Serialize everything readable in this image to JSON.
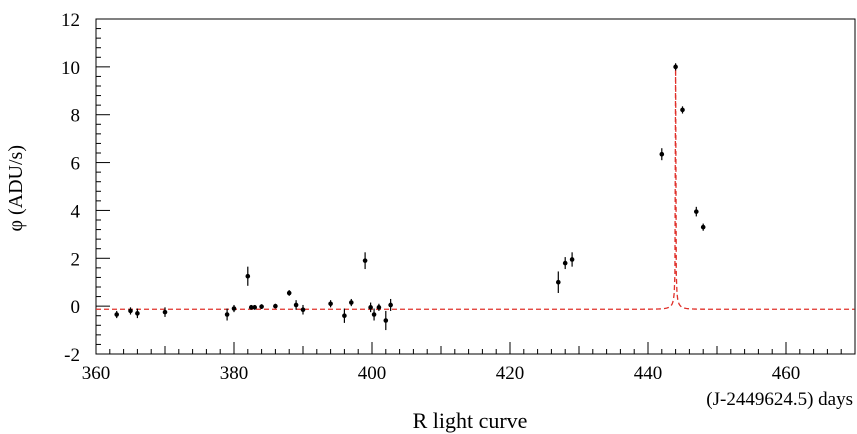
{
  "chart_data": {
    "type": "scatter",
    "title": "",
    "caption": "R light curve",
    "xlabel": "(J-2449624.5) days",
    "ylabel": "φ (ADU/s)",
    "xlim": [
      360,
      470
    ],
    "ylim": [
      -2,
      12
    ],
    "x_ticks": [
      360,
      380,
      400,
      420,
      440,
      460
    ],
    "y_ticks": [
      -2,
      0,
      2,
      4,
      6,
      8,
      10,
      12
    ],
    "x_tick_labels": [
      "360",
      "380",
      "400",
      "420",
      "440",
      "460"
    ],
    "y_tick_labels": [
      "-2",
      "0",
      "2",
      "4",
      "6",
      "8",
      "10",
      "12"
    ],
    "grid": false,
    "legend": "none",
    "series": [
      {
        "kind": "points-with-errorbars",
        "color": "#000000",
        "points": [
          {
            "x": 363.0,
            "y": -0.35,
            "err": 0.15
          },
          {
            "x": 365.0,
            "y": -0.2,
            "err": 0.15
          },
          {
            "x": 366.0,
            "y": -0.3,
            "err": 0.2
          },
          {
            "x": 370.0,
            "y": -0.25,
            "err": 0.2
          },
          {
            "x": 379.0,
            "y": -0.35,
            "err": 0.25
          },
          {
            "x": 380.0,
            "y": -0.1,
            "err": 0.15
          },
          {
            "x": 382.0,
            "y": 1.25,
            "err": 0.4
          },
          {
            "x": 382.5,
            "y": -0.05,
            "err": 0.1
          },
          {
            "x": 383.0,
            "y": -0.05,
            "err": 0.1
          },
          {
            "x": 384.0,
            "y": -0.02,
            "err": 0.1
          },
          {
            "x": 386.0,
            "y": 0.0,
            "err": 0.1
          },
          {
            "x": 388.0,
            "y": 0.55,
            "err": 0.12
          },
          {
            "x": 389.0,
            "y": 0.05,
            "err": 0.2
          },
          {
            "x": 390.0,
            "y": -0.15,
            "err": 0.2
          },
          {
            "x": 394.0,
            "y": 0.1,
            "err": 0.15
          },
          {
            "x": 396.0,
            "y": -0.4,
            "err": 0.3
          },
          {
            "x": 397.0,
            "y": 0.15,
            "err": 0.15
          },
          {
            "x": 399.0,
            "y": 1.9,
            "err": 0.35
          },
          {
            "x": 399.8,
            "y": -0.05,
            "err": 0.2
          },
          {
            "x": 400.3,
            "y": -0.35,
            "err": 0.25
          },
          {
            "x": 401.0,
            "y": -0.05,
            "err": 0.15
          },
          {
            "x": 402.0,
            "y": -0.6,
            "err": 0.4
          },
          {
            "x": 402.7,
            "y": 0.05,
            "err": 0.25
          },
          {
            "x": 427.0,
            "y": 1.0,
            "err": 0.45
          },
          {
            "x": 428.0,
            "y": 1.8,
            "err": 0.25
          },
          {
            "x": 429.0,
            "y": 1.95,
            "err": 0.3
          },
          {
            "x": 442.0,
            "y": 6.35,
            "err": 0.25
          },
          {
            "x": 444.0,
            "y": 10.0,
            "err": 0.15
          },
          {
            "x": 445.0,
            "y": 8.2,
            "err": 0.15
          },
          {
            "x": 447.0,
            "y": 3.95,
            "err": 0.2
          },
          {
            "x": 448.0,
            "y": 3.3,
            "err": 0.15
          }
        ]
      },
      {
        "kind": "fit-curve",
        "style": "dashed",
        "color": "#e0302a",
        "model": "microlensing",
        "params": {
          "t0": 444.0,
          "tE": 1.52,
          "u0": 0.01,
          "baseline": -0.13,
          "flux_scale": 1.0
        }
      }
    ]
  }
}
